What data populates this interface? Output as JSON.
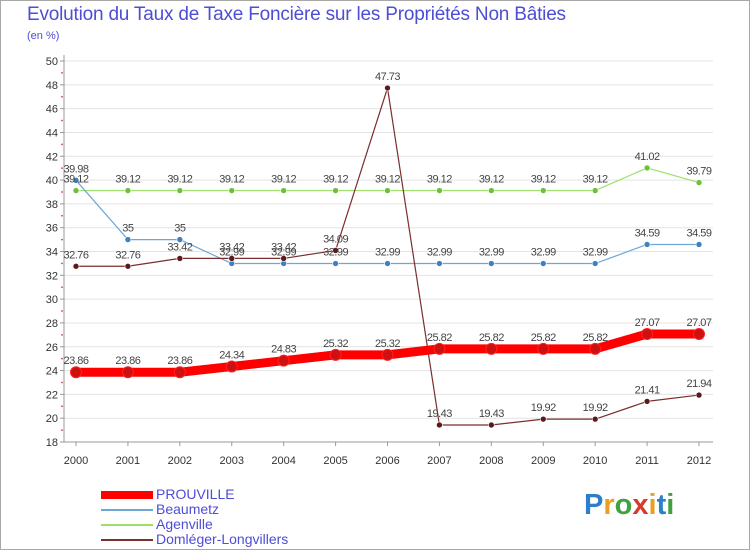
{
  "chart_data": {
    "type": "line",
    "title": "Evolution du Taux de Taxe Foncière sur les Propriétés Non Bâties",
    "unit_label": "(en %)",
    "categories": [
      "2000",
      "2001",
      "2002",
      "2003",
      "2004",
      "2005",
      "2006",
      "2007",
      "2008",
      "2009",
      "2010",
      "2011",
      "2012"
    ],
    "ylim": [
      18,
      50
    ],
    "yticks": [
      18,
      20,
      22,
      24,
      26,
      28,
      30,
      32,
      34,
      36,
      38,
      40,
      42,
      44,
      46,
      48,
      50
    ],
    "grid": "horizontal",
    "legend_position": "bottom-left",
    "series": [
      {
        "name": "PROUVILLE",
        "color": "#ff0000",
        "values": [
          23.86,
          23.86,
          23.86,
          24.34,
          24.83,
          25.32,
          25.32,
          25.82,
          25.82,
          25.82,
          25.82,
          27.07,
          27.07
        ],
        "labels": [
          "23.86",
          "23.86",
          "23.86",
          "24.34",
          "24.83",
          "25.32",
          "25.32",
          "25.82",
          "25.82",
          "25.82",
          "25.82",
          "27.07",
          "27.07"
        ]
      },
      {
        "name": "Beaumetz",
        "color": "#6ea7d6",
        "values": [
          39.98,
          35,
          35,
          32.99,
          32.99,
          32.99,
          32.99,
          32.99,
          32.99,
          32.99,
          32.99,
          34.59,
          34.59
        ],
        "labels": [
          "39.98",
          "35",
          "35",
          "32.99",
          "32.99",
          "32.99",
          "32.99",
          "32.99",
          "32.99",
          "32.99",
          "32.99",
          "34.59",
          "34.59"
        ]
      },
      {
        "name": "Agenville",
        "color": "#9ce06a",
        "values": [
          39.12,
          39.12,
          39.12,
          39.12,
          39.12,
          39.12,
          39.12,
          39.12,
          39.12,
          39.12,
          39.12,
          41.02,
          39.79
        ],
        "labels": [
          "39.12",
          "39.12",
          "39.12",
          "39.12",
          "39.12",
          "39.12",
          "39.12",
          "39.12",
          "39.12",
          "39.12",
          "39.12",
          "41.02",
          "39.79"
        ]
      },
      {
        "name": "Domléger-Longvillers",
        "color": "#7a2e2e",
        "values": [
          32.76,
          32.76,
          33.42,
          33.42,
          33.42,
          34.09,
          47.73,
          19.43,
          19.43,
          19.92,
          19.92,
          21.41,
          21.94
        ],
        "labels": [
          "32.76",
          "32.76",
          "33.42",
          "33.42",
          "33.42",
          "34.09",
          "47.73",
          "19.43",
          "19.43",
          "19.92",
          "19.92",
          "21.41",
          "21.94"
        ]
      }
    ]
  },
  "brand": {
    "letters": [
      "P",
      "r",
      "o",
      "x",
      "i",
      "t",
      "i"
    ]
  },
  "colors": {
    "title": "#4d4dd6",
    "axis": "#999999",
    "grid": "#e3e3e3"
  }
}
